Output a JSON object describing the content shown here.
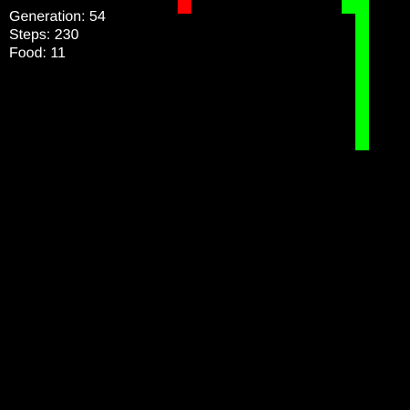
{
  "hud": {
    "generation": "Generation: 54",
    "steps": "Steps: 230",
    "food": "Food: 11"
  },
  "colors": {
    "background": "#000000",
    "snake": "#00ff00",
    "food": "#ff0000",
    "text": "#ffffff"
  },
  "grid": {
    "columns": 30,
    "rows": 30
  },
  "food": {
    "col": 13,
    "row": 0
  },
  "snake": [
    {
      "col": 26,
      "row": 10
    },
    {
      "col": 26,
      "row": 9
    },
    {
      "col": 26,
      "row": 8
    },
    {
      "col": 26,
      "row": 7
    },
    {
      "col": 26,
      "row": 6
    },
    {
      "col": 26,
      "row": 5
    },
    {
      "col": 26,
      "row": 4
    },
    {
      "col": 26,
      "row": 3
    },
    {
      "col": 26,
      "row": 2
    },
    {
      "col": 26,
      "row": 1
    },
    {
      "col": 26,
      "row": 0
    },
    {
      "col": 25,
      "row": 0
    }
  ]
}
